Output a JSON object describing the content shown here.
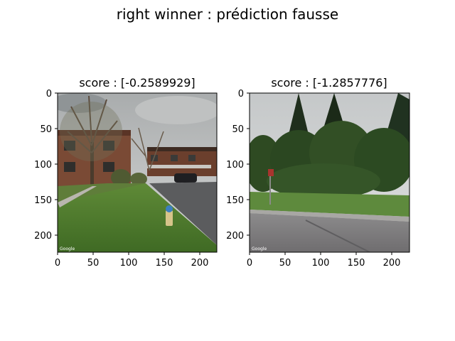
{
  "figure": {
    "suptitle": "right winner : prédiction fausse"
  },
  "panels": [
    {
      "title": "score : [-0.2589929]",
      "xticks": [
        "0",
        "50",
        "100",
        "150",
        "200"
      ],
      "yticks": [
        "0",
        "50",
        "100",
        "150",
        "200"
      ],
      "watermark_left": "Google",
      "image_description_icon": "street-view-photo-houses-icon"
    },
    {
      "title": "score : [-1.2857776]",
      "xticks": [
        "0",
        "50",
        "100",
        "150",
        "200"
      ],
      "yticks": [
        "0",
        "50",
        "100",
        "150",
        "200"
      ],
      "watermark_left": "Google",
      "image_description_icon": "street-view-photo-trees-icon"
    }
  ]
}
